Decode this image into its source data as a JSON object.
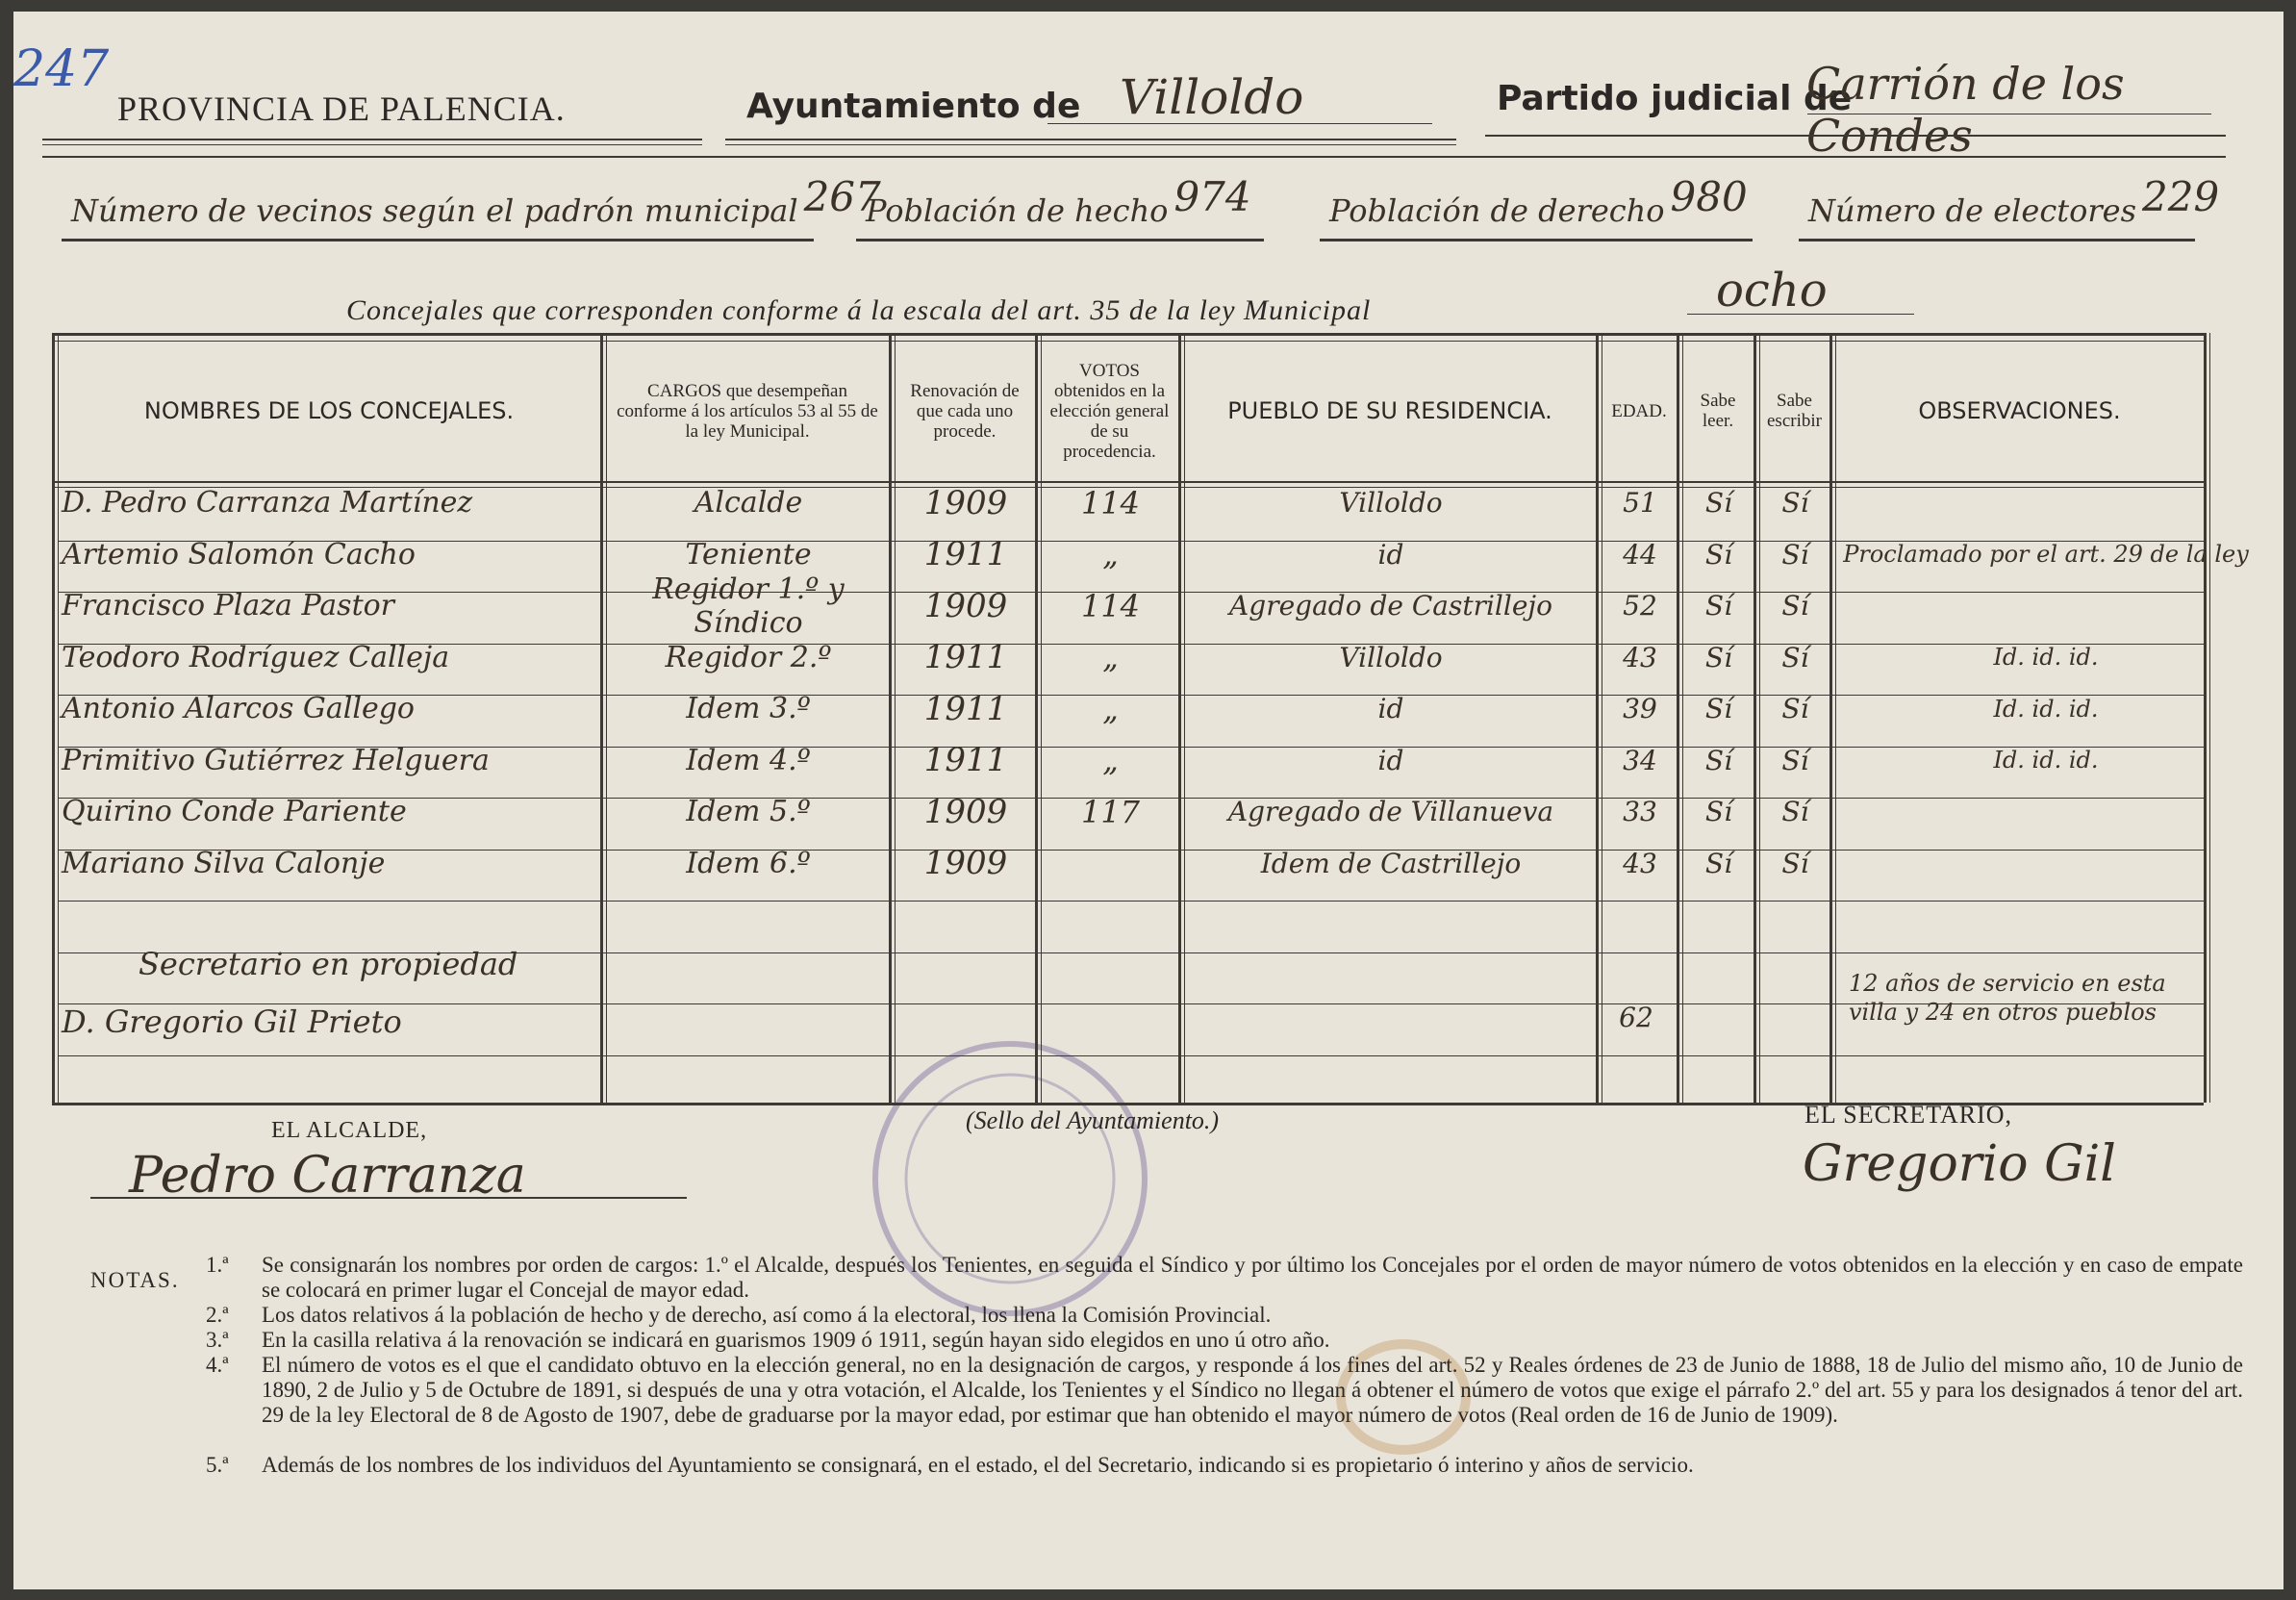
{
  "page_number": "247",
  "header": {
    "provincia": "PROVINCIA DE PALENCIA.",
    "ayuntamiento_label": "Ayuntamiento de",
    "ayuntamiento": "Villoldo",
    "partido_label": "Partido judicial de",
    "partido": "Carrión de los Condes"
  },
  "stats": [
    {
      "label": "Número de vecinos según el padrón municipal",
      "value": "267"
    },
    {
      "label": "Población de hecho",
      "value": "974"
    },
    {
      "label": "Población de derecho",
      "value": "980"
    },
    {
      "label": "Número de electores",
      "value": "229"
    }
  ],
  "concejales": {
    "label": "Concejales que corresponden conforme á la escala del art. 35 de la ley Municipal",
    "value": "ocho"
  },
  "table": {
    "headers": [
      "NOMBRES DE LOS CONCEJALES.",
      "CARGOS que desempeñan conforme á los artículos 53 al 55 de la ley Municipal.",
      "Renovación de que cada uno procede.",
      "VOTOS obtenidos en la elección general de su procedencia.",
      "PUEBLO DE SU RESIDENCIA.",
      "EDAD.",
      "Sabe leer.",
      "Sabe escribir",
      "OBSERVACIONES."
    ],
    "rows": [
      {
        "nombre": "D. Pedro Carranza Martínez",
        "cargo": "Alcalde",
        "renovacion": "1909",
        "votos": "114",
        "pueblo": "Villoldo",
        "edad": "51",
        "leer": "Sí",
        "escribir": "Sí"
      },
      {
        "nombre": "Artemio Salomón Cacho",
        "cargo": "Teniente",
        "renovacion": "1911",
        "votos": "„",
        "pueblo": "id",
        "edad": "44",
        "leer": "Sí",
        "escribir": "Sí",
        "observaciones": "Proclamado por el art. 29 de la ley"
      },
      {
        "nombre": "Francisco Plaza Pastor",
        "cargo": "Regidor 1.º y Síndico",
        "renovacion": "1909",
        "votos": "114",
        "pueblo": "Agregado de Castrillejo",
        "edad": "52",
        "leer": "Sí",
        "escribir": "Sí"
      },
      {
        "nombre": "Teodoro Rodríguez Calleja",
        "cargo": "Regidor 2.º",
        "renovacion": "1911",
        "votos": "„",
        "pueblo": "Villoldo",
        "edad": "43",
        "leer": "Sí",
        "escribir": "Sí",
        "observaciones": "Id. id. id."
      },
      {
        "nombre": "Antonio Alarcos Gallego",
        "cargo": "Idem 3.º",
        "renovacion": "1911",
        "votos": "„",
        "pueblo": "id",
        "edad": "39",
        "leer": "Sí",
        "escribir": "Sí",
        "observaciones": "Id. id. id."
      },
      {
        "nombre": "Primitivo Gutiérrez Helguera",
        "cargo": "Idem 4.º",
        "renovacion": "1911",
        "votos": "„",
        "pueblo": "id",
        "edad": "34",
        "leer": "Sí",
        "escribir": "Sí",
        "observaciones": "Id. id. id."
      },
      {
        "nombre": "Quirino Conde Pariente",
        "cargo": "Idem 5.º",
        "renovacion": "1909",
        "votos": "117",
        "pueblo": "Agregado de Villanueva",
        "edad": "33",
        "leer": "Sí",
        "escribir": "Sí"
      },
      {
        "nombre": "Mariano Silva Calonje",
        "cargo": "Idem 6.º",
        "renovacion": "1909",
        "pueblo": "Idem de Castrillejo",
        "edad": "43",
        "leer": "Sí",
        "escribir": "Sí"
      }
    ],
    "secretario": {
      "label": "Secretario en propiedad",
      "nombre": "D. Gregorio Gil Prieto",
      "edad": "62",
      "observaciones": "12 años de servicio en esta villa y 24 en otros pueblos"
    }
  },
  "signatures": {
    "alcalde_label": "EL ALCALDE,",
    "alcalde": "Pedro Carranza",
    "sello": "(Sello del Ayuntamiento.)",
    "secretario_label": "EL SECRETARIO,",
    "secretario": "Gregorio Gil"
  },
  "notes": {
    "title": "NOTAS.",
    "items": [
      {
        "marker": "1.ª",
        "text": "Se consignarán los nombres por orden de cargos: 1.º el Alcalde, después los Tenientes, en seguida el Síndico y por último los Concejales por el orden de mayor número de votos obtenidos en la elección y en caso de empate se colocará en primer lugar el Concejal de mayor edad."
      },
      {
        "marker": "2.ª",
        "text": "Los datos relativos á la población de hecho y de derecho, así como á la electoral, los llena la Comisión Provincial."
      },
      {
        "marker": "3.ª",
        "text": "En la casilla relativa á la renovación se indicará en guarismos 1909 ó 1911, según hayan sido elegidos en uno ú otro año."
      },
      {
        "marker": "4.ª",
        "text": "El número de votos es el que el candidato obtuvo en la elección general, no en la designación de cargos, y responde á los fines del art. 52 y Reales órdenes de 23 de Junio de 1888, 18 de Julio del mismo año, 10 de Junio de 1890, 2 de Julio y 5 de Octubre de 1891, si después de una y otra votación, el Alcalde, los Tenientes y el Síndico no llegan á obtener el número de votos que exige el párrafo 2.º del art. 55 y para los designados á tenor del art. 29 de la ley Electoral de 8 de Agosto de 1907, debe de graduarse por la mayor edad, por estimar que han obtenido el mayor número de votos (Real orden de 16 de Junio de 1909)."
      },
      {
        "marker": "5.ª",
        "text": "Además de los nombres de los individuos del Ayuntamiento se consignará, en el estado, el del Secretario, indicando si es propietario ó interino y años de servicio."
      }
    ]
  }
}
